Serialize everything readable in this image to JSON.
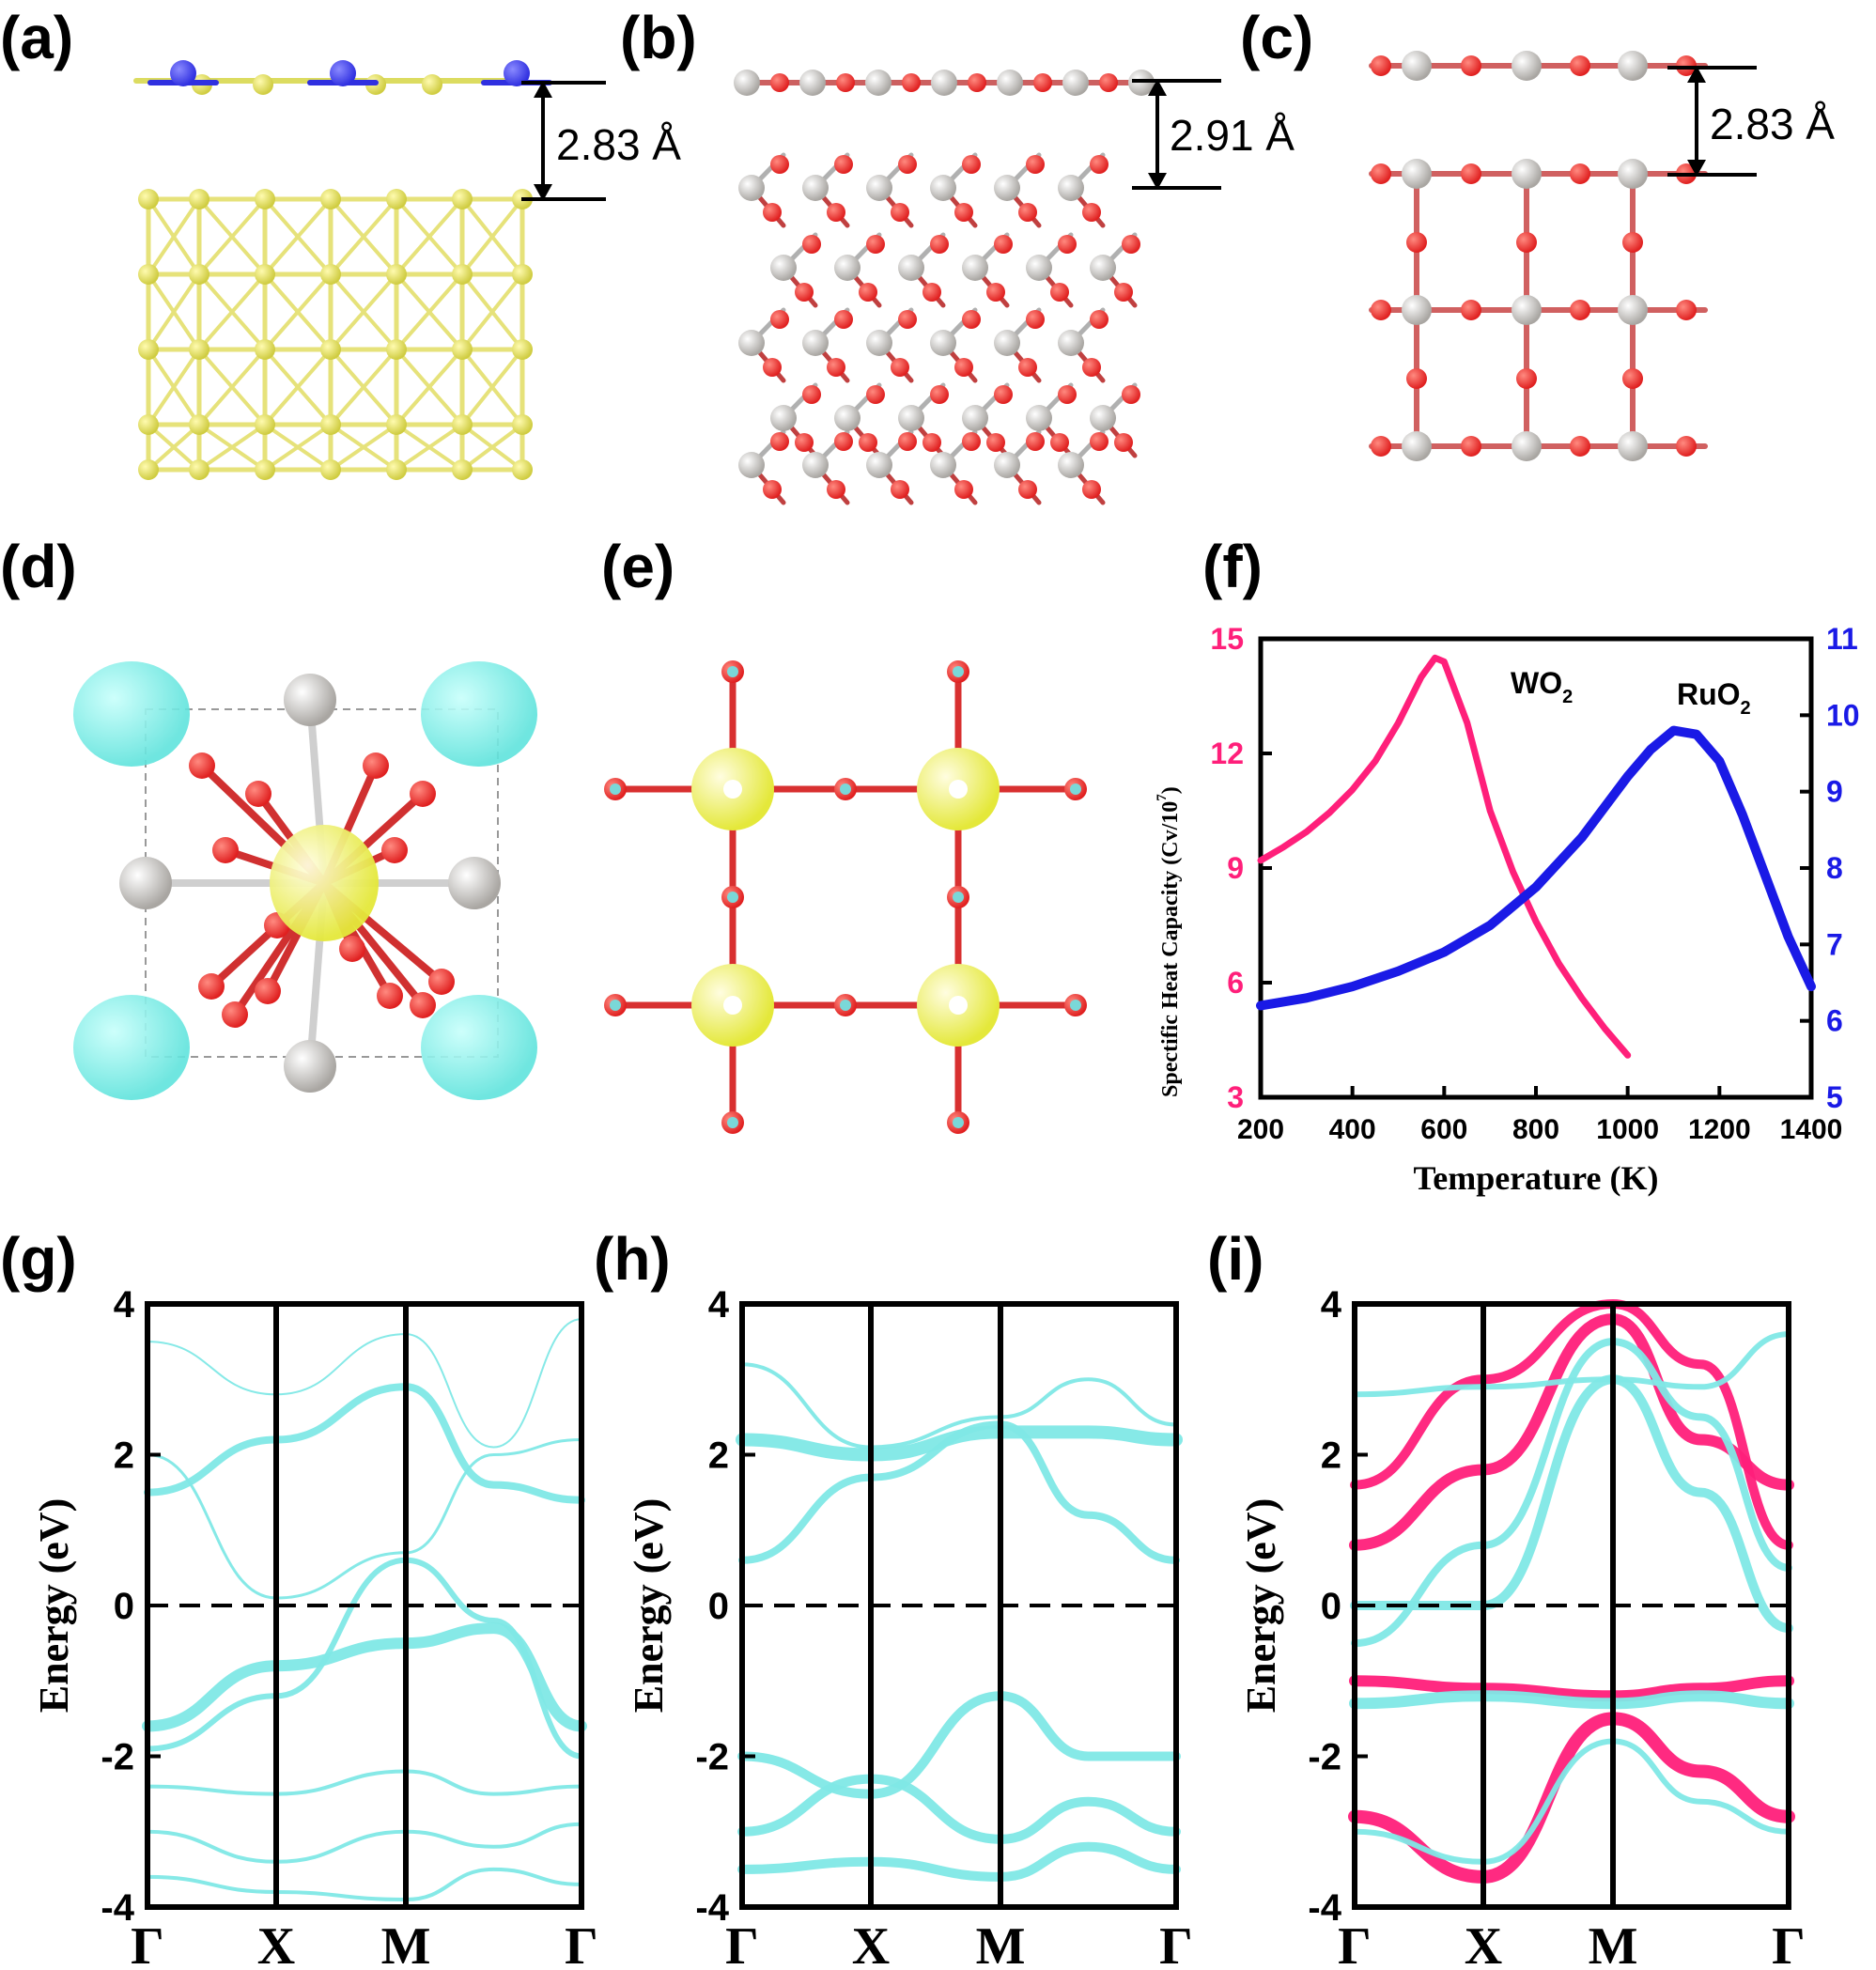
{
  "panels": {
    "a": {
      "label": "(a)",
      "distance": "2.83 Å"
    },
    "b": {
      "label": "(b)",
      "distance": "2.91 Å"
    },
    "c": {
      "label": "(c)",
      "distance": "2.83 Å"
    },
    "d": {
      "label": "(d)"
    },
    "e": {
      "label": "(e)"
    },
    "f": {
      "label": "(f)"
    },
    "g": {
      "label": "(g)"
    },
    "h": {
      "label": "(h)"
    },
    "i": {
      "label": "(i)"
    }
  },
  "colors": {
    "cyan": "#7fe8e6",
    "pink": "#ff1f7a",
    "blue": "#1a1ae6",
    "sulfur": "#e8e66a",
    "oxygen": "#e02020",
    "metal_gray": "#c8c5c2",
    "nitrogen": "#3030e0",
    "isosurface_yellow": "#e4e83a",
    "isosurface_cyan": "#5fe3dc"
  },
  "chart_data": [
    {
      "panel": "f",
      "type": "line",
      "title": "",
      "xlabel": "Temperature (K)",
      "ylabel": "Spectific Heat Capacity (Cv/10",
      "ylabel_sup": "7",
      "xlim": [
        200,
        1400
      ],
      "ylim_left": [
        3,
        15
      ],
      "ylim_right": [
        5,
        11
      ],
      "xticks": [
        "200",
        "400",
        "600",
        "800",
        "1000",
        "1200",
        "1400"
      ],
      "yticks_left": [
        "3",
        "6",
        "9",
        "12",
        "15"
      ],
      "yticks_right": [
        "5",
        "6",
        "7",
        "8",
        "9",
        "10",
        "11"
      ],
      "series": [
        {
          "name": "WO",
          "name_sub": "2",
          "axis": "left",
          "x": [
            200,
            250,
            300,
            350,
            400,
            450,
            500,
            550,
            580,
            600,
            650,
            700,
            750,
            800,
            850,
            900,
            950,
            1000
          ],
          "y": [
            9.2,
            9.55,
            9.95,
            10.45,
            11.05,
            11.8,
            12.8,
            14.0,
            14.5,
            14.4,
            12.8,
            10.5,
            8.9,
            7.6,
            6.5,
            5.6,
            4.8,
            4.1
          ]
        },
        {
          "name": "RuO",
          "name_sub": "2",
          "axis": "right",
          "x": [
            200,
            300,
            400,
            500,
            600,
            700,
            800,
            900,
            1000,
            1050,
            1100,
            1150,
            1200,
            1250,
            1300,
            1350,
            1400
          ],
          "y": [
            6.2,
            6.3,
            6.45,
            6.65,
            6.9,
            7.25,
            7.75,
            8.4,
            9.2,
            9.55,
            9.8,
            9.75,
            9.4,
            8.7,
            7.9,
            7.1,
            6.45
          ]
        }
      ]
    },
    {
      "panel": "g",
      "type": "line",
      "ylabel": "Energy (eV)",
      "ylim": [
        -4,
        4
      ],
      "yticks": [
        "-4",
        "-2",
        "0",
        "2",
        "4"
      ],
      "kpoints": [
        "Γ",
        "X",
        "M",
        "Γ"
      ],
      "fermi_level": 0,
      "series": [
        {
          "color": "cyan",
          "weight": 12,
          "y": [
            -1.6,
            -0.8,
            -0.5,
            -0.3,
            -1.6
          ]
        },
        {
          "color": "cyan",
          "weight": 6,
          "y": [
            -1.9,
            -1.2,
            0.6,
            -0.2,
            -2.0
          ]
        },
        {
          "color": "cyan",
          "weight": 4,
          "y": [
            -2.4,
            -2.5,
            -2.2,
            -2.5,
            -2.4
          ]
        },
        {
          "color": "cyan",
          "weight": 4,
          "y": [
            -3.0,
            -3.4,
            -3.0,
            -3.2,
            -2.9
          ]
        },
        {
          "color": "cyan",
          "weight": 4,
          "y": [
            -3.6,
            -3.8,
            -3.9,
            -3.5,
            -3.7
          ]
        },
        {
          "color": "cyan",
          "weight": 8,
          "y": [
            1.5,
            2.2,
            2.9,
            1.6,
            1.4
          ]
        },
        {
          "color": "cyan",
          "weight": 3,
          "y": [
            2.0,
            0.1,
            0.7,
            2.0,
            2.2
          ]
        },
        {
          "color": "cyan",
          "weight": 2,
          "y": [
            3.5,
            2.8,
            3.6,
            2.1,
            3.8
          ]
        }
      ]
    },
    {
      "panel": "h",
      "type": "line",
      "ylabel": "Energy (eV)",
      "ylim": [
        -4,
        4
      ],
      "yticks": [
        "-4",
        "-2",
        "0",
        "2",
        "4"
      ],
      "kpoints": [
        "Γ",
        "X",
        "M",
        "Γ"
      ],
      "fermi_level": 0,
      "series": [
        {
          "color": "cyan",
          "weight": 14,
          "y": [
            2.2,
            2.0,
            2.3,
            2.3,
            2.2
          ]
        },
        {
          "color": "cyan",
          "weight": 8,
          "y": [
            0.6,
            1.7,
            2.4,
            1.2,
            0.6
          ]
        },
        {
          "color": "cyan",
          "weight": 4,
          "y": [
            3.2,
            2.1,
            2.5,
            3.0,
            2.4
          ]
        },
        {
          "color": "cyan",
          "weight": 10,
          "y": [
            -2.0,
            -2.5,
            -1.2,
            -2.0,
            -2.0
          ]
        },
        {
          "color": "cyan",
          "weight": 10,
          "y": [
            -3.0,
            -2.3,
            -3.1,
            -2.6,
            -3.0
          ]
        },
        {
          "color": "cyan",
          "weight": 10,
          "y": [
            -3.5,
            -3.4,
            -3.6,
            -3.2,
            -3.5
          ]
        }
      ]
    },
    {
      "panel": "i",
      "type": "line",
      "ylabel": "Energy (eV)",
      "ylim": [
        -4,
        4
      ],
      "yticks": [
        "-4",
        "-2",
        "0",
        "2",
        "4"
      ],
      "kpoints": [
        "Γ",
        "X",
        "M",
        "Γ"
      ],
      "fermi_level": 0,
      "series": [
        {
          "color": "pink",
          "weight": 12,
          "y": [
            -1.0,
            -1.1,
            -1.2,
            -1.1,
            -1.0
          ]
        },
        {
          "color": "pink",
          "weight": 14,
          "y": [
            -2.8,
            -3.6,
            -1.5,
            -2.2,
            -2.8
          ]
        },
        {
          "color": "pink",
          "weight": 12,
          "y": [
            0.8,
            1.8,
            3.8,
            2.2,
            1.6
          ]
        },
        {
          "color": "pink",
          "weight": 10,
          "y": [
            1.6,
            3.0,
            4.0,
            3.2,
            0.8
          ]
        },
        {
          "color": "cyan",
          "weight": 12,
          "y": [
            -1.3,
            -1.2,
            -1.3,
            -1.2,
            -1.3
          ]
        },
        {
          "color": "cyan",
          "weight": 10,
          "y": [
            0.0,
            0.0,
            3.0,
            1.5,
            -0.3
          ]
        },
        {
          "color": "cyan",
          "weight": 8,
          "y": [
            -0.5,
            0.8,
            3.5,
            2.5,
            0.5
          ]
        },
        {
          "color": "cyan",
          "weight": 6,
          "y": [
            2.8,
            2.9,
            3.0,
            2.9,
            3.6
          ]
        },
        {
          "color": "cyan",
          "weight": 6,
          "y": [
            -3.0,
            -3.4,
            -1.8,
            -2.6,
            -3.0
          ]
        }
      ]
    }
  ]
}
